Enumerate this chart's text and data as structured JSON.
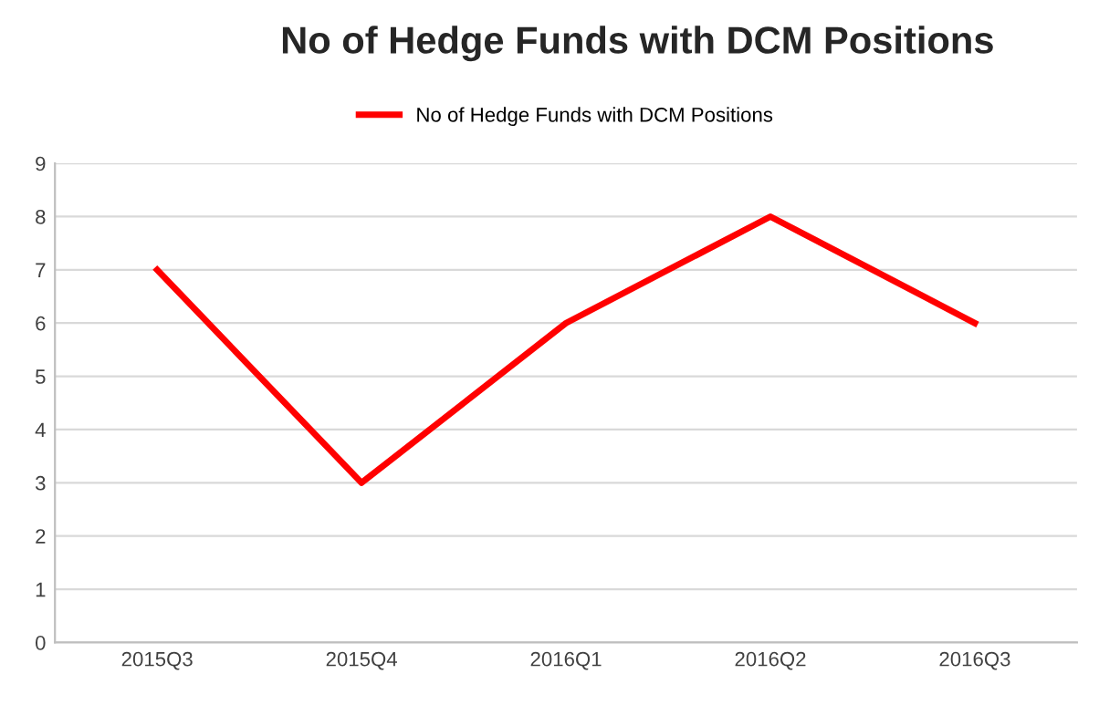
{
  "chart_data": {
    "type": "line",
    "title": "No of Hedge Funds with DCM Positions",
    "categories": [
      "2015Q3",
      "2015Q4",
      "2016Q1",
      "2016Q2",
      "2016Q3"
    ],
    "series": [
      {
        "name": "No of Hedge Funds with DCM Positions",
        "color": "#ff0000",
        "values": [
          7,
          3,
          6,
          8,
          6
        ]
      }
    ],
    "ylim": [
      0,
      9
    ],
    "yticks": [
      0,
      1,
      2,
      3,
      4,
      5,
      6,
      7,
      8,
      9
    ],
    "grid": "y",
    "legend": "top",
    "marker": "none",
    "line_style": "solid"
  }
}
